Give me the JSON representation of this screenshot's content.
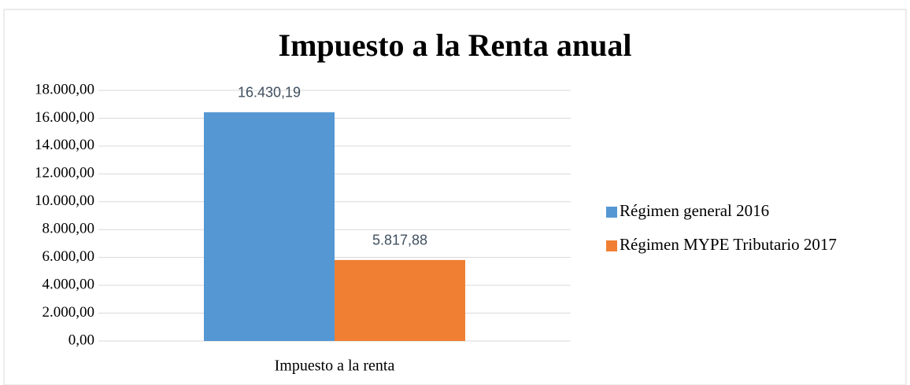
{
  "chart_data": {
    "type": "bar",
    "title": "Impuesto a la Renta anual",
    "categories": [
      "Impuesto a la renta"
    ],
    "series": [
      {
        "name": "Régimen general 2016",
        "color": "#5597d3",
        "values": [
          16430.19
        ],
        "value_labels": [
          "16.430,19"
        ]
      },
      {
        "name": "Régimen MYPE Tributario 2017",
        "color": "#f07f34",
        "values": [
          5817.88
        ],
        "value_labels": [
          "5.817,88"
        ]
      }
    ],
    "ylim": [
      0,
      18000
    ],
    "yticks": [
      {
        "value": 0,
        "label": "0,00"
      },
      {
        "value": 2000,
        "label": "2.000,00"
      },
      {
        "value": 4000,
        "label": "4.000,00"
      },
      {
        "value": 6000,
        "label": "6.000,00"
      },
      {
        "value": 8000,
        "label": "8.000,00"
      },
      {
        "value": 10000,
        "label": "10.000,00"
      },
      {
        "value": 12000,
        "label": "12.000,00"
      },
      {
        "value": 14000,
        "label": "14.000,00"
      },
      {
        "value": 16000,
        "label": "16.000,00"
      },
      {
        "value": 18000,
        "label": "18.000,00"
      }
    ],
    "grid": true,
    "legend": "right"
  }
}
